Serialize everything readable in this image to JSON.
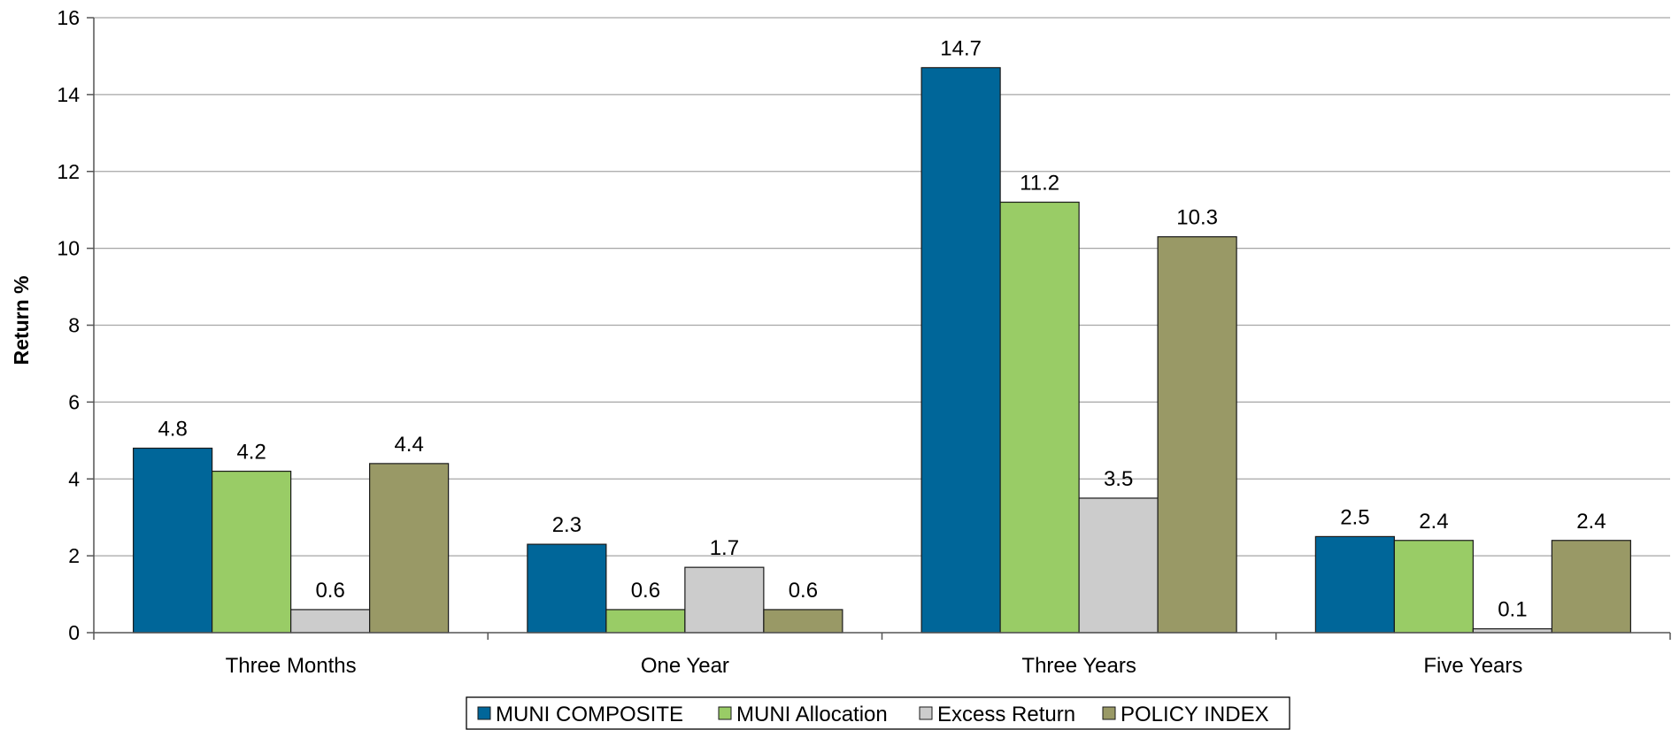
{
  "chart_data": {
    "type": "bar",
    "title": "",
    "xlabel": "",
    "ylabel": "Return %",
    "ylim": [
      0,
      16
    ],
    "yticks": [
      0,
      2,
      4,
      6,
      8,
      10,
      12,
      14,
      16
    ],
    "grid": true,
    "legend_position": "bottom",
    "categories": [
      "Three Months",
      "One Year",
      "Three Years",
      "Five Years"
    ],
    "series": [
      {
        "name": "MUNI COMPOSITE",
        "color": "#006699",
        "values": [
          4.8,
          2.3,
          14.7,
          2.5
        ]
      },
      {
        "name": "MUNI Allocation",
        "color": "#99CC66",
        "values": [
          4.2,
          0.6,
          11.2,
          2.4
        ]
      },
      {
        "name": "Excess Return",
        "color": "#CCCCCC",
        "values": [
          0.6,
          1.7,
          3.5,
          0.1
        ]
      },
      {
        "name": "POLICY INDEX",
        "color": "#999966",
        "values": [
          4.4,
          0.6,
          10.3,
          2.4
        ]
      }
    ]
  }
}
